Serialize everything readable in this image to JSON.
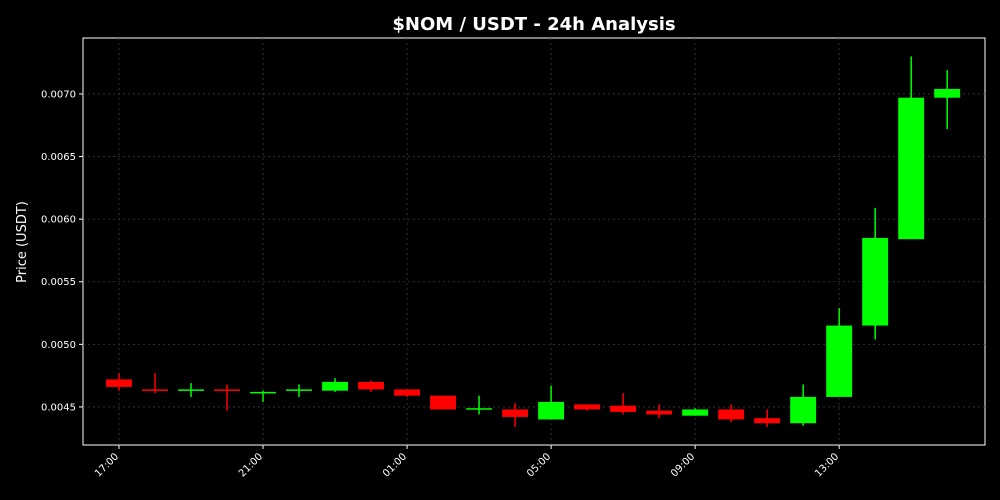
{
  "chart_data": {
    "type": "candlestick",
    "title": "$NOM / USDT - 24h Analysis",
    "y_label": "Price (USDT)",
    "categories": [
      "17:00",
      null,
      null,
      null,
      "21:00",
      null,
      null,
      null,
      "01:00",
      null,
      null,
      null,
      "05:00",
      null,
      null,
      null,
      "09:00",
      null,
      null,
      null,
      "13:00",
      null,
      null,
      null
    ],
    "open": [
      0.00472,
      0.00464,
      0.00463,
      0.00464,
      0.00461,
      0.00463,
      0.00463,
      0.0047,
      0.00464,
      0.00459,
      0.00448,
      0.00448,
      0.0044,
      0.00452,
      0.00451,
      0.00447,
      0.00443,
      0.00448,
      0.00441,
      0.00437,
      0.00458,
      0.00515,
      0.00584,
      0.00697
    ],
    "high": [
      0.00477,
      0.00477,
      0.00469,
      0.00468,
      0.00463,
      0.00468,
      0.00473,
      0.00471,
      0.00464,
      0.00459,
      0.00459,
      0.00453,
      0.00467,
      0.00452,
      0.00461,
      0.00452,
      0.00449,
      0.00452,
      0.00448,
      0.00468,
      0.00529,
      0.00609,
      0.0073,
      0.00719
    ],
    "low": [
      0.00463,
      0.00461,
      0.00458,
      0.00447,
      0.00454,
      0.00458,
      0.00462,
      0.00462,
      0.00458,
      0.00448,
      0.00444,
      0.00434,
      0.0044,
      0.00447,
      0.00444,
      0.00441,
      0.00443,
      0.00438,
      0.00434,
      0.00435,
      0.00458,
      0.00504,
      0.00584,
      0.00672
    ],
    "close": [
      0.00466,
      0.00463,
      0.00464,
      0.00463,
      0.00462,
      0.00464,
      0.0047,
      0.00464,
      0.00459,
      0.00448,
      0.00449,
      0.00442,
      0.00454,
      0.00448,
      0.00446,
      0.00444,
      0.00448,
      0.0044,
      0.00437,
      0.00458,
      0.00515,
      0.00585,
      0.00697,
      0.00704
    ],
    "up_color": "#00ff00",
    "down_color": "#ff0000",
    "ylim": [
      0.004196,
      0.007447
    ],
    "yticks": [
      0.0045,
      {
        "value": 0.005,
        "label": "0.0050"
      },
      0.0055,
      {
        "value": 0.006,
        "label": "0.0060"
      },
      0.0065,
      {
        "value": 0.007,
        "label": "0.0070"
      }
    ],
    "grid": true
  }
}
